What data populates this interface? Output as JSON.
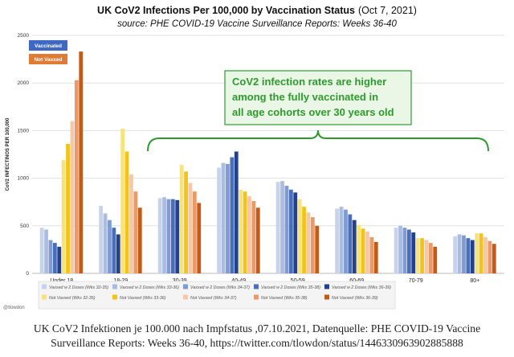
{
  "chart_data": {
    "type": "bar",
    "title_main": "UK CoV2 Infections Per 100,000 by Vaccination Status",
    "title_date": "(Oct 7, 2021)",
    "subtitle": "source: PHE COVID-19 Vaccine Surveillance Reports: Weeks 36-40",
    "ylabel": "CoV2 INFECTINOS PER 100,000",
    "ylim": [
      0,
      2500
    ],
    "yticks": [
      "0",
      "500",
      "1000",
      "1500",
      "2000",
      "2500"
    ],
    "grid": true,
    "categories": [
      "Under 18",
      "18-29",
      "30-39",
      "40-49",
      "50-59",
      "60-69",
      "70-79",
      "80+"
    ],
    "series": [
      {
        "name": "Vaxxed w 2 Doses (Wks 32-35)",
        "color": "#c6d3ea",
        "values": [
          480,
          710,
          790,
          1110,
          960,
          680,
          480,
          390
        ]
      },
      {
        "name": "Vaxxed w 2 Doses (Wks 33-36)",
        "color": "#aabde0",
        "values": [
          460,
          630,
          800,
          1160,
          970,
          700,
          500,
          410
        ]
      },
      {
        "name": "Vaxxed w 2 Doses (Wks 34-37)",
        "color": "#7f9bd2",
        "values": [
          350,
          560,
          780,
          1150,
          920,
          670,
          480,
          400
        ]
      },
      {
        "name": "Vaxxed w 2 Doses (Wks 35-38)",
        "color": "#4a6fba",
        "values": [
          320,
          480,
          780,
          1220,
          880,
          620,
          460,
          370
        ]
      },
      {
        "name": "Vaxxed w 2 Doses (Wks 36-39)",
        "color": "#23418d",
        "values": [
          280,
          410,
          770,
          1280,
          850,
          560,
          430,
          350
        ]
      },
      {
        "name": "Not Vaxxed (Wks 32-35)",
        "color": "#f7e27c",
        "values": [
          1190,
          1520,
          1140,
          880,
          780,
          510,
          370,
          420
        ]
      },
      {
        "name": "Not Vaxxed (Wks 33-36)",
        "color": "#f2c41a",
        "values": [
          1360,
          1280,
          1070,
          860,
          700,
          470,
          370,
          420
        ]
      },
      {
        "name": "Not Vaxxed (Wks 34-37)",
        "color": "#f6c8a7",
        "values": [
          1600,
          1040,
          950,
          810,
          640,
          440,
          350,
          380
        ]
      },
      {
        "name": "Not Vaxxed (Wks 35-38)",
        "color": "#eb9a67",
        "values": [
          2030,
          860,
          860,
          760,
          590,
          380,
          320,
          340
        ]
      },
      {
        "name": "Not Vaxxed (Wks 36-39)",
        "color": "#c45a17",
        "values": [
          2330,
          690,
          740,
          690,
          500,
          330,
          280,
          310
        ]
      }
    ],
    "legend_top": [
      {
        "label": "Vaccinated",
        "color": "#3f68c4"
      },
      {
        "label": "Not Vaxxed",
        "color": "#e07b33"
      }
    ],
    "legend_placement": "bottom",
    "annotation": {
      "lines": [
        "CoV2 infection rates are higher",
        "among the fully vaccinated in",
        "all age cohorts over 30 years old"
      ],
      "color": "#2e9a2e",
      "spans": "30-39 to 80+"
    },
    "watermark": "@tlowdon"
  },
  "caption": {
    "line1": "UK CoV2 Infektionen je 100.000 nach Impfstatus ,07.10.2021, Datenquelle: PHE COVID-19 Vaccine",
    "line2": "Surveillance Reports: Weeks 36-40, https://twitter.com/tlowdon/status/1446330963902885888"
  }
}
